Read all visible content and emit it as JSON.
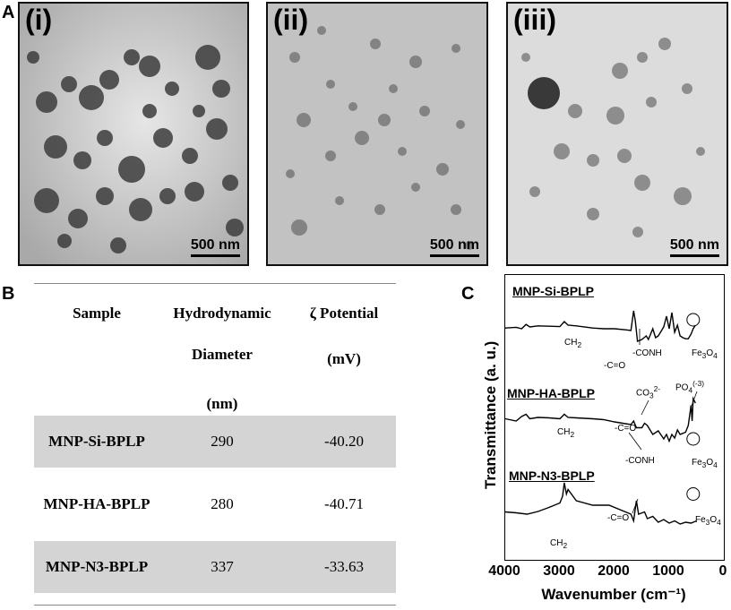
{
  "panel_labels": {
    "a": "A",
    "b": "B",
    "c": "C"
  },
  "micrographs": [
    {
      "label": "(i)",
      "scale": "500 nm"
    },
    {
      "label": "(ii)",
      "scale": "500 nm"
    },
    {
      "label": "(iii)",
      "scale": "500 nm"
    }
  ],
  "table": {
    "headers": {
      "sample": "Sample",
      "hydro_line1": "Hydrodynamic",
      "hydro_line2": "Diameter",
      "hydro_line3": "(nm)",
      "zeta_line1": "ζ Potential",
      "zeta_line2": "(mV)"
    },
    "rows": [
      {
        "sample": "MNP-Si-BPLP",
        "diameter": "290",
        "zeta": "-40.20"
      },
      {
        "sample": "MNP-HA-BPLP",
        "diameter": "280",
        "zeta": "-40.71"
      },
      {
        "sample": "MNP-N3-BPLP",
        "diameter": "337",
        "zeta": "-33.63"
      }
    ]
  },
  "chart_data": {
    "type": "line",
    "xlabel": "Wavenumber (cm⁻¹)",
    "ylabel": "Transmittance (a. u.)",
    "xlim": [
      4000,
      0
    ],
    "xticks": [
      "4000",
      "3000",
      "2000",
      "1000",
      "0"
    ],
    "series": [
      {
        "name": "MNP-Si-BPLP",
        "x": [
          4000,
          3800,
          3700,
          3620,
          3550,
          3400,
          3200,
          3000,
          2920,
          2850,
          2700,
          2400,
          2200,
          2000,
          1800,
          1700,
          1650,
          1620,
          1580,
          1500,
          1420,
          1380,
          1300,
          1250,
          1200,
          1100,
          1050,
          1000,
          950,
          900,
          850,
          800,
          750,
          700,
          650,
          600,
          560,
          520
        ],
        "y": [
          0.52,
          0.54,
          0.5,
          0.62,
          0.55,
          0.58,
          0.57,
          0.56,
          0.7,
          0.6,
          0.58,
          0.52,
          0.5,
          0.5,
          0.47,
          0.45,
          1.0,
          0.72,
          0.15,
          0.2,
          0.3,
          0.2,
          0.5,
          0.25,
          0.3,
          0.55,
          0.85,
          0.5,
          0.95,
          0.4,
          0.6,
          0.3,
          0.25,
          0.22,
          0.22,
          0.35,
          0.5,
          0.6
        ],
        "annotations": [
          "CH2",
          "-C=O",
          "-CONH",
          "Fe3O4"
        ]
      },
      {
        "name": "MNP-HA-BPLP",
        "x": [
          4000,
          3800,
          3700,
          3620,
          3550,
          3400,
          3200,
          3000,
          2920,
          2850,
          2700,
          2400,
          2200,
          2000,
          1800,
          1700,
          1650,
          1600,
          1500,
          1450,
          1400,
          1300,
          1200,
          1100,
          1050,
          1000,
          950,
          900,
          850,
          800,
          700,
          650,
          600,
          580,
          560,
          520
        ],
        "y": [
          0.55,
          0.5,
          0.6,
          0.65,
          0.55,
          0.58,
          0.57,
          0.55,
          0.65,
          0.58,
          0.57,
          0.55,
          0.53,
          0.48,
          0.44,
          0.42,
          0.5,
          0.35,
          0.35,
          0.45,
          0.4,
          0.2,
          0.28,
          0.1,
          0.2,
          0.05,
          0.2,
          0.12,
          0.3,
          0.2,
          0.25,
          0.4,
          0.85,
          0.5,
          1.0,
          0.9
        ],
        "annotations": [
          "CH2",
          "-C=O",
          "CO3 2-",
          "PO4 (-3)",
          "-CONH",
          "Fe3O4"
        ]
      },
      {
        "name": "MNP-N3-BPLP",
        "x": [
          4000,
          3800,
          3600,
          3400,
          3200,
          3000,
          2950,
          2920,
          2880,
          2850,
          2700,
          2400,
          2100,
          1800,
          1700,
          1650,
          1600,
          1560,
          1450,
          1400,
          1300,
          1200,
          1100,
          1000,
          900,
          800,
          700,
          600,
          500
        ],
        "y": [
          0.35,
          0.33,
          0.3,
          0.36,
          0.45,
          0.55,
          0.7,
          1.0,
          0.75,
          0.85,
          0.6,
          0.5,
          0.5,
          0.35,
          0.3,
          0.15,
          0.6,
          0.3,
          0.35,
          0.2,
          0.25,
          0.12,
          0.18,
          0.1,
          0.15,
          0.08,
          0.12,
          0.1,
          0.15
        ],
        "annotations": [
          "CH2",
          "-C=O",
          "Fe3O4"
        ]
      }
    ],
    "annotation_text": {
      "ch2": "CH",
      "ch2_sub": "2",
      "co": "-C=O",
      "conh": "-CONH",
      "fe": "Fe",
      "fe_sub1": "3",
      "o": "O",
      "fe_sub2": "4",
      "co3": "CO",
      "co3_sub": "3",
      "co3_sup": "2-",
      "po4": "PO",
      "po4_sub": "4",
      "po4_sup": "(-3)"
    }
  },
  "colors": {
    "shade": "#d4d4d4",
    "line": "#000000"
  }
}
